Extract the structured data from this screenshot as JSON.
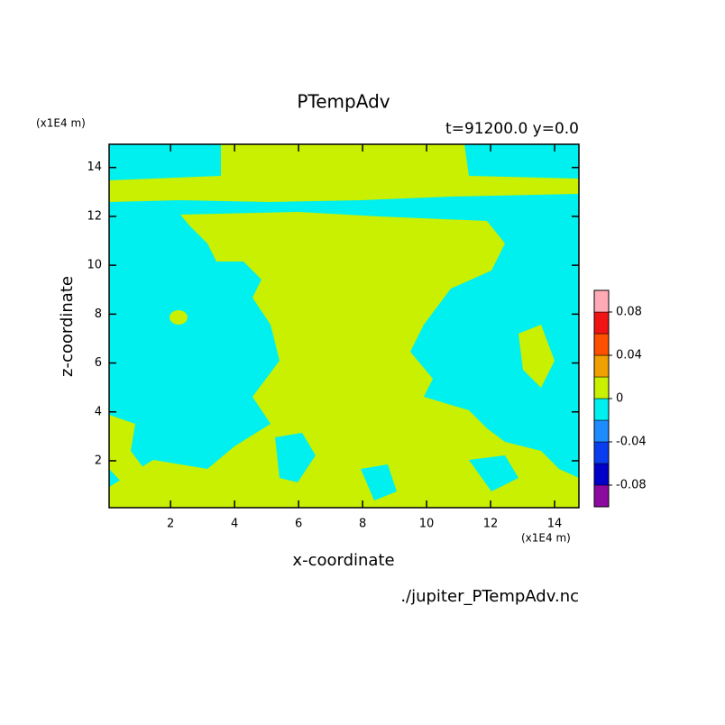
{
  "chart_data": {
    "type": "contour",
    "title": "PTempAdv",
    "subtitle": "t=91200.0 y=0.0",
    "x_label": "x-coordinate",
    "y_label": "z-coordinate",
    "x_unit": "(x1E4 m)",
    "y_unit": "(x1E4 m)",
    "source": "./jupiter_PTempAdv.nc",
    "xlim": [
      0.08,
      14.76
    ],
    "ylim": [
      0.08,
      14.95
    ],
    "xticks": [
      2,
      4,
      6,
      8,
      10,
      12,
      14
    ],
    "yticks": [
      2,
      4,
      6,
      8,
      10,
      12,
      14
    ],
    "colorbar": {
      "levels": [
        -0.08,
        -0.06,
        -0.04,
        -0.02,
        0,
        0.02,
        0.04,
        0.06,
        0.08
      ],
      "colors": [
        "#8c0aa0",
        "#0000c8",
        "#0a3cf0",
        "#1e8cff",
        "#00f0f0",
        "#c8f000",
        "#f0a000",
        "#ff5000",
        "#f01414",
        "#ffaab4"
      ],
      "ticks": [
        -0.08,
        -0.04,
        0,
        0.04,
        0.08
      ]
    }
  }
}
